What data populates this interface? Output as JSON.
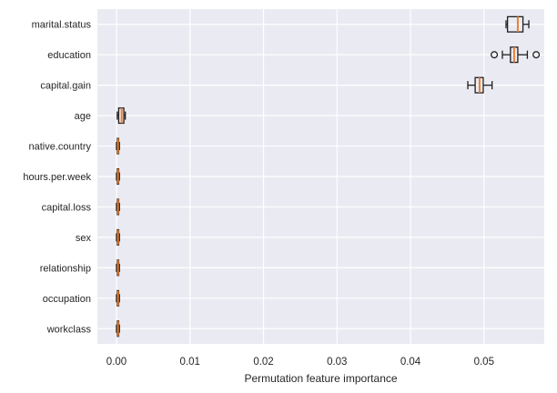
{
  "chart_data": {
    "type": "boxplot",
    "orientation": "horizontal",
    "title": "",
    "xlabel": "Permutation feature importance",
    "ylabel": "",
    "xlim": [
      -0.0026,
      0.0582
    ],
    "xticks": [
      0.0,
      0.01,
      0.02,
      0.03,
      0.04,
      0.05
    ],
    "xtick_labels": [
      "0.00",
      "0.01",
      "0.02",
      "0.03",
      "0.04",
      "0.05"
    ],
    "grid": true,
    "grid_color": "#ffffff",
    "categories": [
      "marital.status",
      "education",
      "capital.gain",
      "age",
      "native.country",
      "hours.per.week",
      "capital.loss",
      "sex",
      "relationship",
      "occupation",
      "workclass"
    ],
    "boxes": [
      {
        "label": "marital.status",
        "whislo": 0.053,
        "q1": 0.0532,
        "med": 0.0546,
        "q3": 0.0553,
        "whishi": 0.0561,
        "fliers": []
      },
      {
        "label": "education",
        "whislo": 0.0525,
        "q1": 0.0536,
        "med": 0.0541,
        "q3": 0.0546,
        "whishi": 0.0559,
        "fliers": [
          0.0514,
          0.0571
        ]
      },
      {
        "label": "capital.gain",
        "whislo": 0.0478,
        "q1": 0.0488,
        "med": 0.0494,
        "q3": 0.0499,
        "whishi": 0.0511,
        "fliers": []
      },
      {
        "label": "age",
        "whislo": 0.0001,
        "q1": 0.0003,
        "med": 0.0007,
        "q3": 0.001,
        "whishi": 0.0012,
        "fliers": []
      },
      {
        "label": "native.country",
        "whislo": 0.0,
        "q1": 0.0001,
        "med": 0.0002,
        "q3": 0.0003,
        "whishi": 0.0004,
        "fliers": []
      },
      {
        "label": "hours.per.week",
        "whislo": 0.0,
        "q1": 0.0001,
        "med": 0.0002,
        "q3": 0.0003,
        "whishi": 0.0004,
        "fliers": []
      },
      {
        "label": "capital.loss",
        "whislo": 0.0,
        "q1": 0.0001,
        "med": 0.0002,
        "q3": 0.0003,
        "whishi": 0.0004,
        "fliers": []
      },
      {
        "label": "sex",
        "whislo": 0.0,
        "q1": 0.0001,
        "med": 0.0002,
        "q3": 0.0003,
        "whishi": 0.0004,
        "fliers": []
      },
      {
        "label": "relationship",
        "whislo": 0.0,
        "q1": 0.0001,
        "med": 0.0002,
        "q3": 0.0003,
        "whishi": 0.0004,
        "fliers": []
      },
      {
        "label": "occupation",
        "whislo": 0.0,
        "q1": 0.0001,
        "med": 0.0002,
        "q3": 0.0003,
        "whishi": 0.0004,
        "fliers": []
      },
      {
        "label": "workclass",
        "whislo": 0.0,
        "q1": 0.0001,
        "med": 0.0002,
        "q3": 0.0003,
        "whishi": 0.0004,
        "fliers": []
      }
    ],
    "colors": {
      "figure_bg": "#ffffff",
      "axes_bg": "#eaeaf2",
      "grid": "#ffffff",
      "box_edge": "#1f1f1f",
      "median": "#ef7f2e",
      "text": "#262626"
    },
    "legend": null
  }
}
